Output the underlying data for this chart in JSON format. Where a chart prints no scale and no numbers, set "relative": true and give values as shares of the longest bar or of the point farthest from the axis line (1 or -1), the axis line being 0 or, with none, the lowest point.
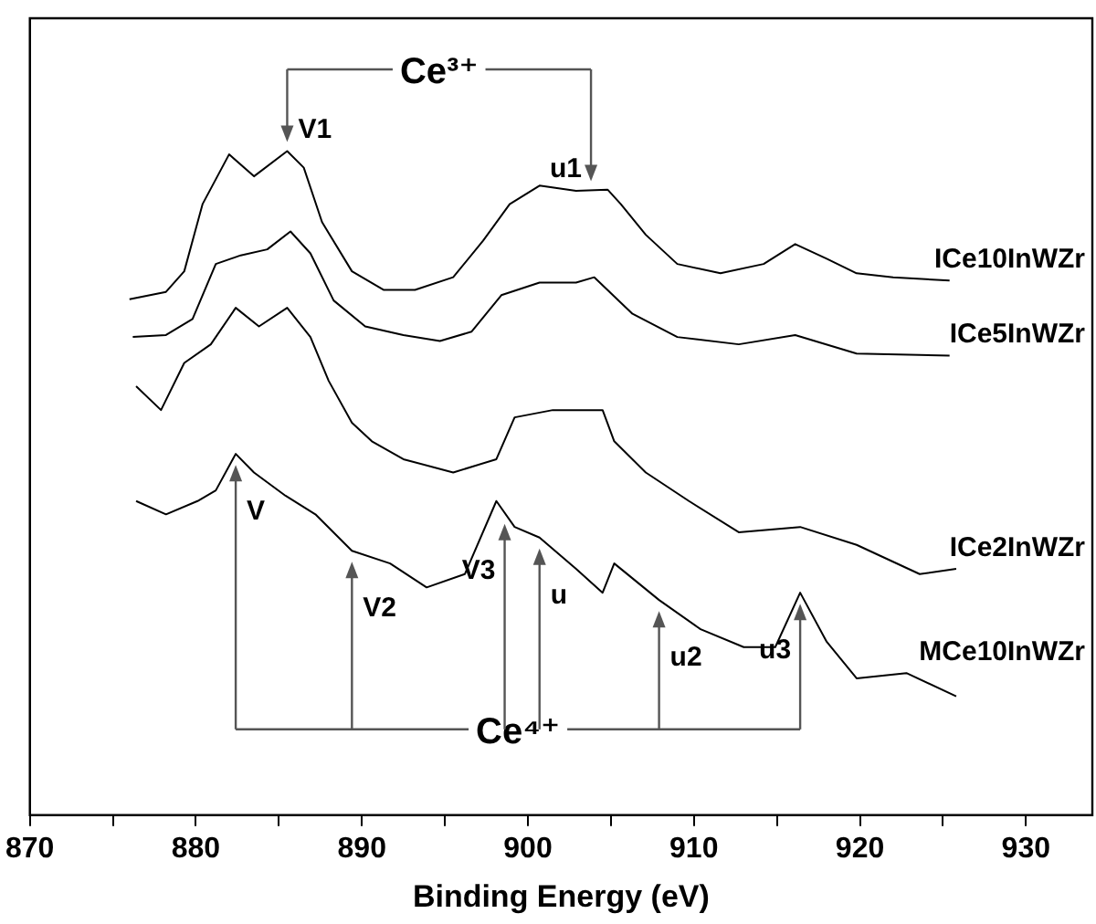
{
  "chart_data": {
    "type": "line",
    "relative": true,
    "xlabel": "Binding Energy (eV)",
    "xlim": [
      870,
      934
    ],
    "xticks": [
      870,
      {
        "value": 875,
        "label": null
      },
      880,
      {
        "value": 885,
        "label": null
      },
      890,
      {
        "value": 895,
        "label": null
      },
      900,
      {
        "value": 905,
        "label": null
      },
      910,
      {
        "value": 915,
        "label": null
      },
      920,
      {
        "value": 925,
        "label": null
      },
      930
    ],
    "grid": false,
    "legend": false,
    "series": [
      {
        "name": "ICe10InWZr",
        "color": "#000000",
        "x": [
          876.0,
          878.2,
          879.3,
          880.4,
          882.0,
          883.5,
          885.5,
          886.5,
          887.6,
          889.4,
          891.3,
          893.2,
          895.5,
          897.3,
          898.9,
          900.7,
          902.9,
          904.8,
          905.6,
          907.1,
          909.0,
          911.6,
          914.2,
          916.1,
          918.0,
          919.8,
          922.0,
          925.4
        ],
        "values": [
          0.777,
          0.788,
          0.819,
          0.92,
          0.995,
          0.962,
          1,
          0.975,
          0.893,
          0.819,
          0.791,
          0.791,
          0.81,
          0.865,
          0.92,
          0.948,
          0.94,
          0.942,
          0.92,
          0.874,
          0.83,
          0.816,
          0.83,
          0.86,
          0.838,
          0.816,
          0.81,
          0.805
        ]
      },
      {
        "name": "ICe5InWZr",
        "color": "#000000",
        "x": [
          876.2,
          878.2,
          879.8,
          881.2,
          882.7,
          884.3,
          885.7,
          886.9,
          888.3,
          890.2,
          892.5,
          894.7,
          896.6,
          898.4,
          900.7,
          902.9,
          904.0,
          906.3,
          909.0,
          912.7,
          916.1,
          919.8,
          925.4
        ],
        "values": [
          0.72,
          0.723,
          0.747,
          0.83,
          0.843,
          0.852,
          0.879,
          0.846,
          0.775,
          0.736,
          0.723,
          0.714,
          0.728,
          0.783,
          0.802,
          0.802,
          0.81,
          0.755,
          0.72,
          0.709,
          0.723,
          0.695,
          0.692
        ]
      },
      {
        "name": "ICe2InWZr",
        "color": "#000000",
        "x": [
          876.4,
          877.9,
          879.3,
          880.9,
          882.4,
          883.8,
          885.5,
          886.9,
          888.0,
          889.4,
          890.6,
          892.5,
          895.5,
          898.1,
          899.2,
          901.5,
          904.5,
          905.2,
          907.1,
          909.7,
          912.7,
          916.4,
          919.8,
          923.6,
          925.8
        ],
        "values": [
          0.646,
          0.61,
          0.681,
          0.709,
          0.764,
          0.736,
          0.764,
          0.72,
          0.654,
          0.591,
          0.563,
          0.536,
          0.516,
          0.536,
          0.599,
          0.61,
          0.61,
          0.563,
          0.516,
          0.473,
          0.426,
          0.434,
          0.407,
          0.363,
          0.371
        ]
      },
      {
        "name": "MCe10InWZr",
        "color": "#000000",
        "x": [
          876.4,
          878.2,
          880.1,
          881.2,
          882.4,
          883.5,
          885.4,
          887.2,
          889.4,
          891.7,
          893.9,
          896.2,
          898.1,
          899.2,
          900.7,
          902.9,
          904.5,
          905.2,
          907.9,
          910.4,
          913.0,
          914.9,
          916.4,
          918.0,
          919.8,
          922.8,
          925.8
        ],
        "values": [
          0.473,
          0.453,
          0.473,
          0.489,
          0.544,
          0.516,
          0.481,
          0.453,
          0.398,
          0.379,
          0.343,
          0.363,
          0.473,
          0.434,
          0.418,
          0.371,
          0.335,
          0.379,
          0.324,
          0.28,
          0.253,
          0.253,
          0.335,
          0.261,
          0.206,
          0.214,
          0.179
        ]
      }
    ],
    "annotations": [
      "Ce³⁺",
      "Ce⁴⁺",
      {
        "text": "V1",
        "x": 885.5,
        "y": 1
      },
      {
        "text": "u1",
        "x": 903.8,
        "y": 0.941
      },
      {
        "text": "V",
        "x": 882.4,
        "y": 0.544
      },
      {
        "text": "V2",
        "x": 889.4,
        "y": 0.398
      },
      {
        "text": "V3",
        "x": 898.6,
        "y": 0.455
      },
      {
        "text": "u",
        "x": 900.7,
        "y": 0.418
      },
      {
        "text": "u2",
        "x": 907.9,
        "y": 0.324
      },
      {
        "text": "u3",
        "x": 916.4,
        "y": 0.335
      }
    ]
  }
}
